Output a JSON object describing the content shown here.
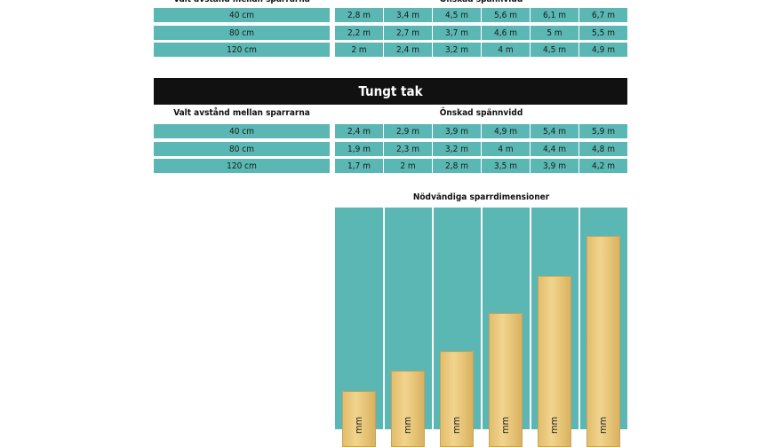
{
  "light_table": {
    "header": {
      "left": "Valt avstånd mellan sparrarna",
      "right": "Önskad spännvidd"
    },
    "rows": [
      {
        "label": "40 cm",
        "cells": [
          "2,8 m",
          "3,4 m",
          "4,5 m",
          "5,6 m",
          "6,1 m",
          "6,7 m"
        ]
      },
      {
        "label": "80 cm",
        "cells": [
          "2,2 m",
          "2,7 m",
          "3,7 m",
          "4,6 m",
          "5 m",
          "5,5 m"
        ]
      },
      {
        "label": "120 cm",
        "cells": [
          "2 m",
          "2,4 m",
          "3,2 m",
          "4 m",
          "4,5 m",
          "4,9 m"
        ]
      }
    ]
  },
  "heavy_table": {
    "title": "Tungt tak",
    "header": {
      "left": "Valt avstånd mellan sparrarna",
      "right": "Önskad spännvidd"
    },
    "rows": [
      {
        "label": "40 cm",
        "cells": [
          "2,4 m",
          "2,9 m",
          "3,9 m",
          "4,9 m",
          "5,4 m",
          "5,9 m"
        ]
      },
      {
        "label": "80 cm",
        "cells": [
          "1,9 m",
          "2,3 m",
          "3,2 m",
          "4 m",
          "4,4 m",
          "4,8 m"
        ]
      },
      {
        "label": "120 cm",
        "cells": [
          "1,7 m",
          "2 m",
          "2,8 m",
          "3,5 m",
          "3,9 m",
          "4,2 m"
        ]
      }
    ]
  },
  "dimensions": {
    "title": "Nödvändiga sparrdimensioner",
    "labels": [
      "mm",
      "mm",
      "mm",
      "mm",
      "mm",
      "mm"
    ]
  }
}
